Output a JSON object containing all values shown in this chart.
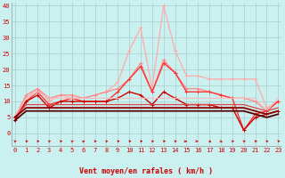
{
  "bg_color": "#caf0f0",
  "grid_color": "#aacccc",
  "xlabel": "Vent moyen/en rafales ( km/h )",
  "xlabel_color": "#cc0000",
  "ytick_labels": [
    "0",
    "5",
    "10",
    "15",
    "20",
    "25",
    "30",
    "35",
    "40"
  ],
  "ytick_vals": [
    0,
    5,
    10,
    15,
    20,
    25,
    30,
    35,
    40
  ],
  "xtick_vals": [
    0,
    1,
    2,
    3,
    4,
    5,
    6,
    7,
    8,
    9,
    10,
    11,
    12,
    13,
    14,
    15,
    16,
    17,
    18,
    19,
    20,
    21,
    22,
    23
  ],
  "ylim": [
    -4,
    41
  ],
  "xlim": [
    -0.3,
    23.3
  ],
  "series": [
    {
      "x": [
        0,
        1,
        2,
        3,
        4,
        5,
        6,
        7,
        8,
        9,
        10,
        11,
        12,
        13,
        14,
        15,
        16,
        17,
        18,
        19,
        20,
        21,
        22,
        23
      ],
      "y": [
        5,
        11,
        14,
        10,
        12,
        11,
        11,
        12,
        13,
        16,
        26,
        33,
        14,
        40,
        26,
        18,
        18,
        17,
        17,
        17,
        17,
        17,
        8,
        10
      ],
      "color": "#ffaaaa",
      "lw": 0.9,
      "marker": "+",
      "ms": 3
    },
    {
      "x": [
        0,
        1,
        2,
        3,
        4,
        5,
        6,
        7,
        8,
        9,
        10,
        11,
        12,
        13,
        14,
        15,
        16,
        17,
        18,
        19,
        20,
        21,
        22,
        23
      ],
      "y": [
        5,
        12,
        14,
        11,
        12,
        12,
        11,
        12,
        13,
        14,
        17,
        22,
        13,
        23,
        19,
        14,
        14,
        13,
        12,
        11,
        11,
        10,
        7,
        10
      ],
      "color": "#ff8888",
      "lw": 0.9,
      "marker": "+",
      "ms": 3
    },
    {
      "x": [
        0,
        1,
        2,
        3,
        4,
        5,
        6,
        7,
        8,
        9,
        10,
        11,
        12,
        13,
        14,
        15,
        16,
        17,
        18,
        19,
        20,
        21,
        22,
        23
      ],
      "y": [
        5,
        10,
        13,
        9,
        10,
        11,
        10,
        10,
        10,
        13,
        17,
        21,
        13,
        22,
        19,
        13,
        13,
        13,
        12,
        11,
        1,
        6,
        7,
        10
      ],
      "color": "#ff3333",
      "lw": 1.0,
      "marker": "+",
      "ms": 3
    },
    {
      "x": [
        0,
        1,
        2,
        3,
        4,
        5,
        6,
        7,
        8,
        9,
        10,
        11,
        12,
        13,
        14,
        15,
        16,
        17,
        18,
        19,
        20,
        21,
        22,
        23
      ],
      "y": [
        4,
        10,
        12,
        8,
        10,
        10,
        10,
        10,
        10,
        11,
        13,
        12,
        9,
        13,
        11,
        9,
        9,
        9,
        8,
        8,
        1,
        5,
        6,
        7
      ],
      "color": "#cc0000",
      "lw": 1.0,
      "marker": "+",
      "ms": 3
    },
    {
      "x": [
        0,
        1,
        2,
        3,
        4,
        5,
        6,
        7,
        8,
        9,
        10,
        11,
        12,
        13,
        14,
        15,
        16,
        17,
        18,
        19,
        20,
        21,
        22,
        23
      ],
      "y": [
        5,
        11,
        13,
        11,
        11,
        11,
        11,
        11,
        11,
        11,
        11,
        11,
        11,
        11,
        11,
        11,
        11,
        11,
        11,
        11,
        11,
        11,
        7,
        11
      ],
      "color": "#ffbbbb",
      "lw": 0.8,
      "marker": null,
      "ms": 0
    },
    {
      "x": [
        0,
        1,
        2,
        3,
        4,
        5,
        6,
        7,
        8,
        9,
        10,
        11,
        12,
        13,
        14,
        15,
        16,
        17,
        18,
        19,
        20,
        21,
        22,
        23
      ],
      "y": [
        5,
        9,
        9,
        9,
        9,
        9,
        9,
        9,
        9,
        9,
        9,
        9,
        9,
        9,
        9,
        9,
        9,
        9,
        9,
        9,
        9,
        8,
        7,
        8
      ],
      "color": "#dd4444",
      "lw": 0.9,
      "marker": null,
      "ms": 0
    },
    {
      "x": [
        0,
        1,
        2,
        3,
        4,
        5,
        6,
        7,
        8,
        9,
        10,
        11,
        12,
        13,
        14,
        15,
        16,
        17,
        18,
        19,
        20,
        21,
        22,
        23
      ],
      "y": [
        5,
        8,
        8,
        8,
        8,
        8,
        8,
        8,
        8,
        8,
        8,
        8,
        8,
        8,
        8,
        8,
        8,
        8,
        8,
        8,
        8,
        7,
        6,
        7
      ],
      "color": "#880000",
      "lw": 1.3,
      "marker": null,
      "ms": 0
    },
    {
      "x": [
        0,
        1,
        2,
        3,
        4,
        5,
        6,
        7,
        8,
        9,
        10,
        11,
        12,
        13,
        14,
        15,
        16,
        17,
        18,
        19,
        20,
        21,
        22,
        23
      ],
      "y": [
        4,
        7,
        7,
        7,
        7,
        7,
        7,
        7,
        7,
        7,
        7,
        7,
        7,
        7,
        7,
        7,
        7,
        7,
        7,
        7,
        7,
        6,
        5,
        6
      ],
      "color": "#550000",
      "lw": 1.3,
      "marker": null,
      "ms": 0
    }
  ],
  "wind_arrows": [
    45,
    50,
    45,
    40,
    45,
    40,
    30,
    45,
    40,
    50,
    55,
    50,
    45,
    50,
    45,
    90,
    100,
    130,
    145,
    45,
    45,
    50,
    45,
    50
  ]
}
